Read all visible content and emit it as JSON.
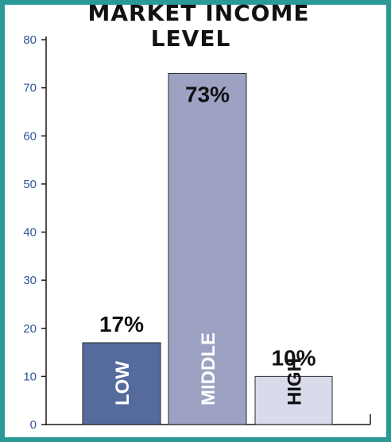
{
  "colors": {
    "frame": "#2b9a97",
    "axis": "#1a1a1a",
    "tick_text": "#2f5597"
  },
  "chart_data": {
    "type": "bar",
    "title_lines": [
      "MARKET INCOME",
      "LEVEL"
    ],
    "xlabel": "",
    "ylabel": "",
    "ylim": [
      0,
      80
    ],
    "yticks": [
      0,
      10,
      20,
      30,
      40,
      50,
      60,
      70,
      80
    ],
    "grid": false,
    "legend": "none",
    "categories": [
      "LOW",
      "MIDDLE",
      "HIGH"
    ],
    "values": [
      17,
      73,
      10
    ],
    "data_labels": [
      "17%",
      "73%",
      "10%"
    ],
    "bar_colors": [
      "#556b9e",
      "#9da2c3",
      "#d9daea"
    ],
    "category_label_colors": [
      "#ffffff",
      "#ffffff",
      "#111111"
    ]
  }
}
